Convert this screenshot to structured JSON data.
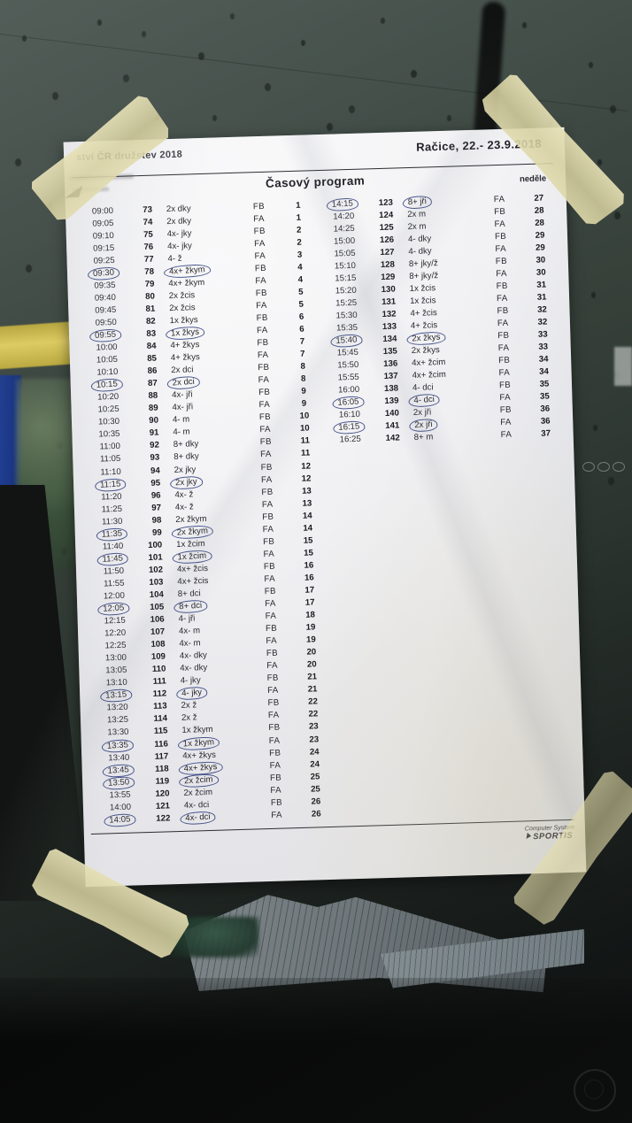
{
  "page": {
    "header_left_fragment": "ství ČR družstev 2018",
    "header_right": "Račice,  22.- 23.9.2018",
    "title": "Časový program",
    "day_label": "neděle",
    "footer": {
      "line1": "Computer System",
      "line2": "SPORTIS",
      "logo_icon": "sportis-flag-icon"
    }
  },
  "schedule": {
    "left_rows": [
      {
        "time": "09:00",
        "no": "73",
        "event": "2x dky",
        "cls": "FB",
        "race": "1",
        "c": false
      },
      {
        "time": "09:05",
        "no": "74",
        "event": "2x dky",
        "cls": "FA",
        "race": "1",
        "c": false
      },
      {
        "time": "09:10",
        "no": "75",
        "event": "4x- jky",
        "cls": "FB",
        "race": "2",
        "c": false
      },
      {
        "time": "09:15",
        "no": "76",
        "event": "4x- jky",
        "cls": "FA",
        "race": "2",
        "c": false
      },
      {
        "time": "09:25",
        "no": "77",
        "event": "4- ž",
        "cls": "FA",
        "race": "3",
        "c": false
      },
      {
        "time": "09:30",
        "no": "78",
        "event": "4x+ žkym",
        "cls": "FB",
        "race": "4",
        "c": true
      },
      {
        "time": "09:35",
        "no": "79",
        "event": "4x+ žkym",
        "cls": "FA",
        "race": "4",
        "c": false
      },
      {
        "time": "09:40",
        "no": "80",
        "event": "2x žcis",
        "cls": "FB",
        "race": "5",
        "c": false
      },
      {
        "time": "09:45",
        "no": "81",
        "event": "2x žcis",
        "cls": "FA",
        "race": "5",
        "c": false
      },
      {
        "time": "09:50",
        "no": "82",
        "event": "1x žkys",
        "cls": "FB",
        "race": "6",
        "c": false
      },
      {
        "time": "09:55",
        "no": "83",
        "event": "1x žkys",
        "cls": "FA",
        "race": "6",
        "c": true
      },
      {
        "time": "10:00",
        "no": "84",
        "event": "4+ žkys",
        "cls": "FB",
        "race": "7",
        "c": false
      },
      {
        "time": "10:05",
        "no": "85",
        "event": "4+ žkys",
        "cls": "FA",
        "race": "7",
        "c": false
      },
      {
        "time": "10:10",
        "no": "86",
        "event": "2x dci",
        "cls": "FB",
        "race": "8",
        "c": false
      },
      {
        "time": "10:15",
        "no": "87",
        "event": "2x dci",
        "cls": "FA",
        "race": "8",
        "c": true
      },
      {
        "time": "10:20",
        "no": "88",
        "event": "4x- jři",
        "cls": "FB",
        "race": "9",
        "c": false
      },
      {
        "time": "10:25",
        "no": "89",
        "event": "4x- jři",
        "cls": "FA",
        "race": "9",
        "c": false
      },
      {
        "time": "10:30",
        "no": "90",
        "event": "4- m",
        "cls": "FB",
        "race": "10",
        "c": false
      },
      {
        "time": "10:35",
        "no": "91",
        "event": "4- m",
        "cls": "FA",
        "race": "10",
        "c": false
      },
      {
        "time": "11:00",
        "no": "92",
        "event": "8+ dky",
        "cls": "FB",
        "race": "11",
        "c": false
      },
      {
        "time": "11:05",
        "no": "93",
        "event": "8+ dky",
        "cls": "FA",
        "race": "11",
        "c": false
      },
      {
        "time": "11:10",
        "no": "94",
        "event": "2x jky",
        "cls": "FB",
        "race": "12",
        "c": false
      },
      {
        "time": "11:15",
        "no": "95",
        "event": "2x jky",
        "cls": "FA",
        "race": "12",
        "c": true
      },
      {
        "time": "11:20",
        "no": "96",
        "event": "4x- ž",
        "cls": "FB",
        "race": "13",
        "c": false
      },
      {
        "time": "11:25",
        "no": "97",
        "event": "4x- ž",
        "cls": "FA",
        "race": "13",
        "c": false
      },
      {
        "time": "11:30",
        "no": "98",
        "event": "2x žkym",
        "cls": "FB",
        "race": "14",
        "c": false
      },
      {
        "time": "11:35",
        "no": "99",
        "event": "2x žkym",
        "cls": "FA",
        "race": "14",
        "c": true
      },
      {
        "time": "11:40",
        "no": "100",
        "event": "1x žcim",
        "cls": "FB",
        "race": "15",
        "c": false
      },
      {
        "time": "11:45",
        "no": "101",
        "event": "1x žcim",
        "cls": "FA",
        "race": "15",
        "c": true
      },
      {
        "time": "11:50",
        "no": "102",
        "event": "4x+ žcis",
        "cls": "FB",
        "race": "16",
        "c": false
      },
      {
        "time": "11:55",
        "no": "103",
        "event": "4x+ žcis",
        "cls": "FA",
        "race": "16",
        "c": false
      },
      {
        "time": "12:00",
        "no": "104",
        "event": "8+ dci",
        "cls": "FB",
        "race": "17",
        "c": false
      },
      {
        "time": "12:05",
        "no": "105",
        "event": "8+ dci",
        "cls": "FA",
        "race": "17",
        "c": true
      },
      {
        "time": "12:15",
        "no": "106",
        "event": "4- jři",
        "cls": "FA",
        "race": "18",
        "c": false
      },
      {
        "time": "12:20",
        "no": "107",
        "event": "4x- m",
        "cls": "FB",
        "race": "19",
        "c": false
      },
      {
        "time": "12:25",
        "no": "108",
        "event": "4x- m",
        "cls": "FA",
        "race": "19",
        "c": false
      },
      {
        "time": "13:00",
        "no": "109",
        "event": "4x- dky",
        "cls": "FB",
        "race": "20",
        "c": false
      },
      {
        "time": "13:05",
        "no": "110",
        "event": "4x- dky",
        "cls": "FA",
        "race": "20",
        "c": false
      },
      {
        "time": "13:10",
        "no": "111",
        "event": "4- jky",
        "cls": "FB",
        "race": "21",
        "c": false
      },
      {
        "time": "13:15",
        "no": "112",
        "event": "4- jky",
        "cls": "FA",
        "race": "21",
        "c": true
      },
      {
        "time": "13:20",
        "no": "113",
        "event": "2x ž",
        "cls": "FB",
        "race": "22",
        "c": false
      },
      {
        "time": "13:25",
        "no": "114",
        "event": "2x ž",
        "cls": "FA",
        "race": "22",
        "c": false
      },
      {
        "time": "13:30",
        "no": "115",
        "event": "1x žkym",
        "cls": "FB",
        "race": "23",
        "c": false
      },
      {
        "time": "13:35",
        "no": "116",
        "event": "1x žkym",
        "cls": "FA",
        "race": "23",
        "c": true
      },
      {
        "time": "13:40",
        "no": "117",
        "event": "4x+ žkys",
        "cls": "FB",
        "race": "24",
        "c": false
      },
      {
        "time": "13:45",
        "no": "118",
        "event": "4x+ žkys",
        "cls": "FA",
        "race": "24",
        "c": true
      },
      {
        "time": "13:50",
        "no": "119",
        "event": "2x žcim",
        "cls": "FB",
        "race": "25",
        "c": true
      },
      {
        "time": "13:55",
        "no": "120",
        "event": "2x žcim",
        "cls": "FA",
        "race": "25",
        "c": false
      },
      {
        "time": "14:00",
        "no": "121",
        "event": "4x- dci",
        "cls": "FB",
        "race": "26",
        "c": false
      },
      {
        "time": "14:05",
        "no": "122",
        "event": "4x- dci",
        "cls": "FA",
        "race": "26",
        "c": true
      }
    ],
    "right_rows": [
      {
        "time": "14:15",
        "no": "123",
        "event": "8+ jři",
        "cls": "FA",
        "race": "27",
        "c": true
      },
      {
        "time": "14:20",
        "no": "124",
        "event": "2x m",
        "cls": "FB",
        "race": "28",
        "c": false
      },
      {
        "time": "14:25",
        "no": "125",
        "event": "2x m",
        "cls": "FA",
        "race": "28",
        "c": false
      },
      {
        "time": "15:00",
        "no": "126",
        "event": "4- dky",
        "cls": "FB",
        "race": "29",
        "c": false
      },
      {
        "time": "15:05",
        "no": "127",
        "event": "4- dky",
        "cls": "FA",
        "race": "29",
        "c": false
      },
      {
        "time": "15:10",
        "no": "128",
        "event": "8+ jky/ž",
        "cls": "FB",
        "race": "30",
        "c": false
      },
      {
        "time": "15:15",
        "no": "129",
        "event": "8+ jky/ž",
        "cls": "FA",
        "race": "30",
        "c": false
      },
      {
        "time": "15:20",
        "no": "130",
        "event": "1x žcis",
        "cls": "FB",
        "race": "31",
        "c": false
      },
      {
        "time": "15:25",
        "no": "131",
        "event": "1x žcis",
        "cls": "FA",
        "race": "31",
        "c": false
      },
      {
        "time": "15:30",
        "no": "132",
        "event": "4+ žcis",
        "cls": "FB",
        "race": "32",
        "c": false
      },
      {
        "time": "15:35",
        "no": "133",
        "event": "4+ žcis",
        "cls": "FA",
        "race": "32",
        "c": false
      },
      {
        "time": "15:40",
        "no": "134",
        "event": "2x žkys",
        "cls": "FB",
        "race": "33",
        "c": true
      },
      {
        "time": "15:45",
        "no": "135",
        "event": "2x žkys",
        "cls": "FA",
        "race": "33",
        "c": false
      },
      {
        "time": "15:50",
        "no": "136",
        "event": "4x+ žcim",
        "cls": "FB",
        "race": "34",
        "c": false
      },
      {
        "time": "15:55",
        "no": "137",
        "event": "4x+ žcim",
        "cls": "FA",
        "race": "34",
        "c": false
      },
      {
        "time": "16:00",
        "no": "138",
        "event": "4- dci",
        "cls": "FB",
        "race": "35",
        "c": false
      },
      {
        "time": "16:05",
        "no": "139",
        "event": "4- dci",
        "cls": "FA",
        "race": "35",
        "c": true
      },
      {
        "time": "16:10",
        "no": "140",
        "event": "2x jři",
        "cls": "FB",
        "race": "36",
        "c": false
      },
      {
        "time": "16:15",
        "no": "141",
        "event": "2x jři",
        "cls": "FA",
        "race": "36",
        "c": true
      },
      {
        "time": "16:25",
        "no": "142",
        "event": "8+ m",
        "cls": "FA",
        "race": "37",
        "c": false
      }
    ]
  },
  "colors": {
    "paper": "#f1f1f3",
    "ink": "#232329",
    "pen_circle": "#2b3a7a",
    "tape": "#ded8ab",
    "glass_dark": "#343f3a"
  }
}
